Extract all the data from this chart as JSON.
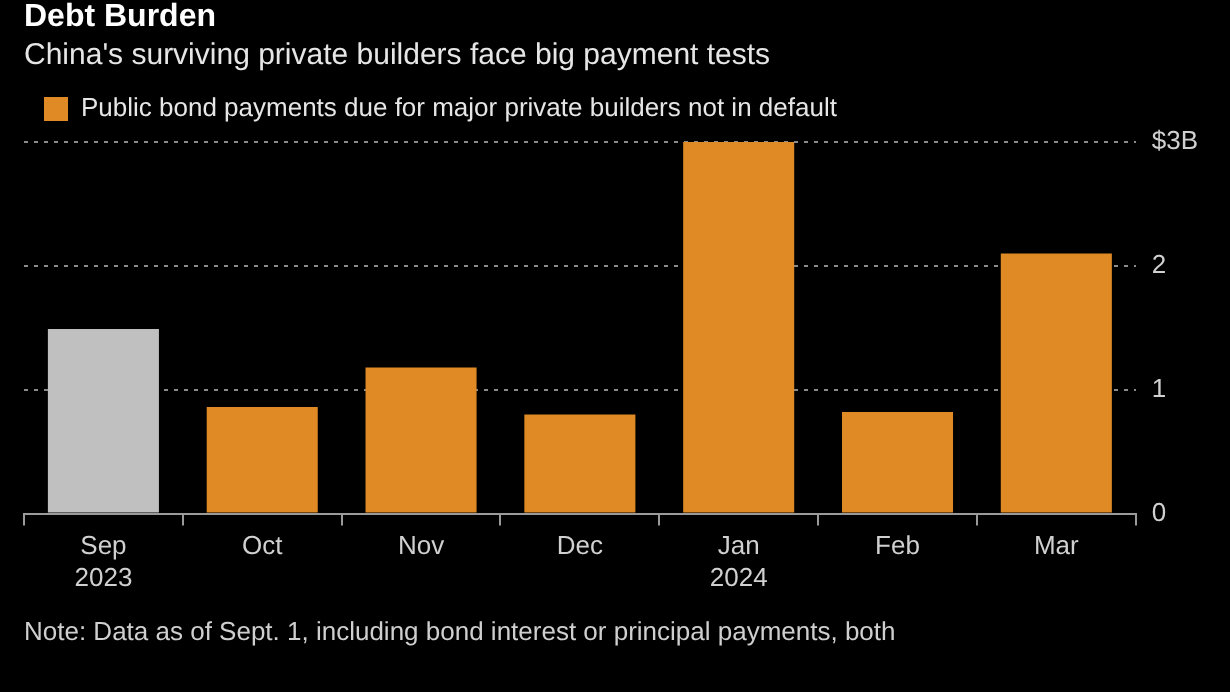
{
  "chart_data": {
    "type": "bar",
    "title": "Debt Burden",
    "subtitle": "China's surviving private builders face big payment tests",
    "categories": [
      "Sep 2023",
      "Oct",
      "Nov",
      "Dec",
      "Jan 2024",
      "Feb",
      "Mar"
    ],
    "series": [
      {
        "name": "Public bond payments due for major private builders not in default",
        "color": "#e08a25",
        "colors": [
          "#c0c0c0",
          "#e08a25",
          "#e08a25",
          "#e08a25",
          "#e08a25",
          "#e08a25",
          "#e08a25"
        ],
        "values": [
          1.49,
          0.86,
          1.18,
          0.8,
          3.0,
          0.82,
          2.1
        ]
      }
    ],
    "ylim": [
      0,
      3
    ],
    "yticks": [
      0,
      1,
      2,
      {
        "value": 3,
        "label": "$3B"
      }
    ],
    "grid": "y",
    "legend": "top left",
    "annotations": [
      "Note: Data as of Sept. 1, including bond interest or principal payments, both"
    ]
  }
}
